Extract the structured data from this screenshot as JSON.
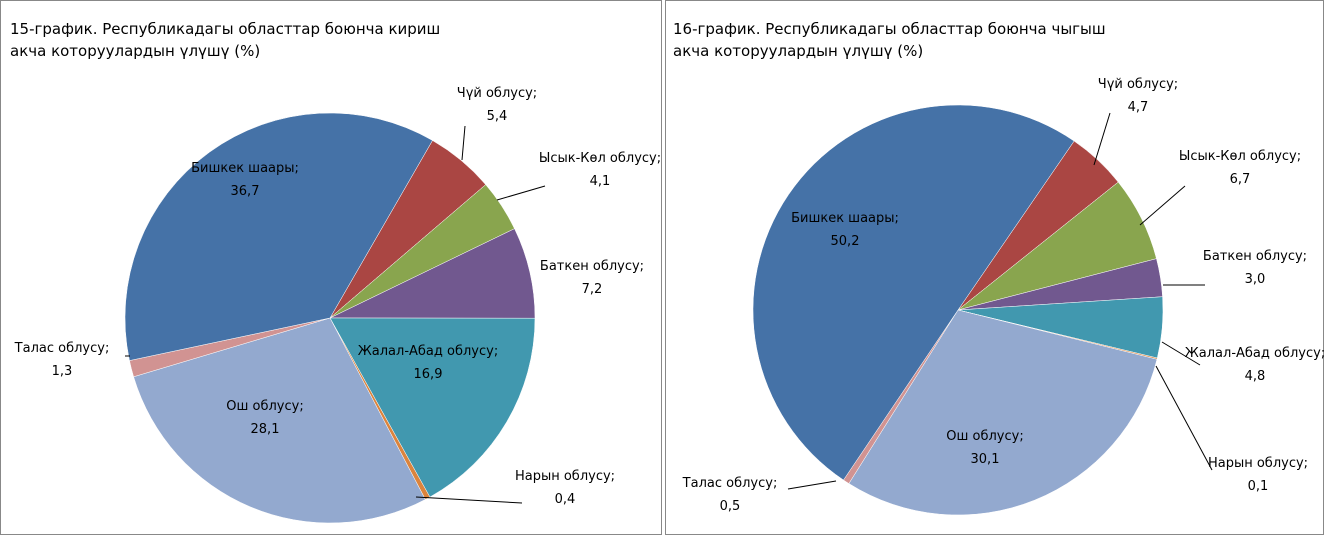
{
  "chart_data": [
    {
      "type": "pie",
      "title": [
        "15-график. Республикадагы областтар боюнча кириш",
        "акча которуулардын үлүшү (%)"
      ],
      "categories": [
        "Чүй облусу;",
        "Ысык-Көл облусу;",
        "Баткен облусу;",
        "Жалал-Абад облусу;",
        "Нарын облусу;",
        "Ош облусу;",
        "Талас облусу;",
        "Бишкек шаары;"
      ],
      "values": [
        5.4,
        4.1,
        7.2,
        16.9,
        0.4,
        28.1,
        1.3,
        36.7
      ],
      "value_labels": [
        "5,4",
        "4,1",
        "7,2",
        "16,9",
        "0,4",
        "28,1",
        "1,3",
        "36,7"
      ],
      "colors": [
        "#aa4643",
        "#89a54e",
        "#71588f",
        "#4198af",
        "#db843d",
        "#93a9cf",
        "#d19392",
        "#4572a7"
      ]
    },
    {
      "type": "pie",
      "title": [
        "16-график. Республикадагы областтар боюнча чыгыш",
        "акча которуулардын үлүшү (%)"
      ],
      "categories": [
        "Чүй облусу;",
        "Ысык-Көл облусу;",
        "Баткен облусу;",
        "Жалал-Абад облусу;",
        "Нарын облусу;",
        "Ош облусу;",
        "Талас облусу;",
        "Бишкек шаары;"
      ],
      "values": [
        4.7,
        6.7,
        3.0,
        4.8,
        0.1,
        30.1,
        0.5,
        50.2
      ],
      "value_labels": [
        "4,7",
        "6,7",
        "3,0",
        "4,8",
        "0,1",
        "30,1",
        "0,5",
        "50,2"
      ],
      "colors": [
        "#aa4643",
        "#89a54e",
        "#71588f",
        "#4198af",
        "#db843d",
        "#93a9cf",
        "#d19392",
        "#4572a7"
      ]
    }
  ]
}
